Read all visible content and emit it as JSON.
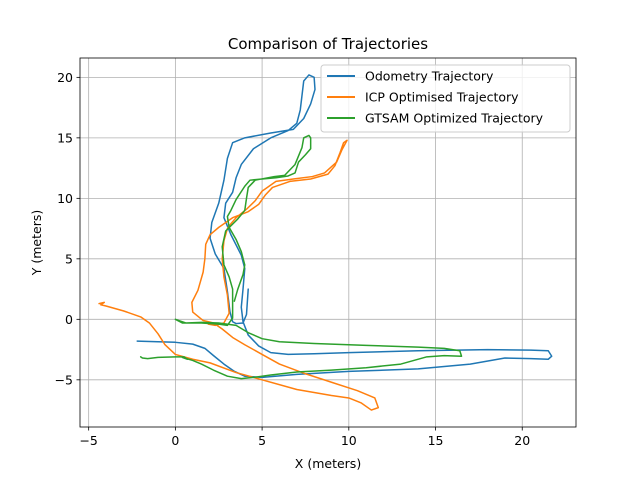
{
  "chart_data": {
    "type": "line",
    "title": "Comparison of Trajectories",
    "xlabel": "X (meters)",
    "ylabel": "Y (meters)",
    "xlim": [
      -5.5,
      23.1
    ],
    "ylim": [
      -8.9,
      21.6
    ],
    "xticks": [
      -5,
      0,
      5,
      10,
      15,
      20
    ],
    "yticks": [
      -5,
      0,
      5,
      10,
      15,
      20
    ],
    "grid": true,
    "legend_position": "top-right",
    "series": [
      {
        "name": "Odometry Trajectory",
        "color": "#1f77b4",
        "points": [
          [
            -2.2,
            -1.8
          ],
          [
            -1.0,
            -1.85
          ],
          [
            0.0,
            -1.9
          ],
          [
            1.0,
            -2.05
          ],
          [
            1.7,
            -2.4
          ],
          [
            2.2,
            -3.0
          ],
          [
            2.8,
            -3.7
          ],
          [
            3.4,
            -4.3
          ],
          [
            4.0,
            -4.7
          ],
          [
            5.0,
            -4.8
          ],
          [
            7.0,
            -4.55
          ],
          [
            10.0,
            -4.3
          ],
          [
            14.0,
            -4.1
          ],
          [
            17.0,
            -3.7
          ],
          [
            19.0,
            -3.2
          ],
          [
            20.5,
            -3.25
          ],
          [
            21.5,
            -3.3
          ],
          [
            21.7,
            -3.05
          ],
          [
            21.5,
            -2.6
          ],
          [
            20.5,
            -2.55
          ],
          [
            18.0,
            -2.5
          ],
          [
            14.0,
            -2.6
          ],
          [
            10.0,
            -2.75
          ],
          [
            8.0,
            -2.85
          ],
          [
            6.5,
            -2.9
          ],
          [
            5.5,
            -2.75
          ],
          [
            4.8,
            -2.2
          ],
          [
            4.2,
            -1.3
          ],
          [
            3.9,
            -0.2
          ],
          [
            3.8,
            1.0
          ],
          [
            3.9,
            2.5
          ],
          [
            4.0,
            4.2
          ],
          [
            3.8,
            5.3
          ],
          [
            3.2,
            7.0
          ],
          [
            2.8,
            8.4
          ],
          [
            2.9,
            9.6
          ],
          [
            3.3,
            10.5
          ],
          [
            3.5,
            11.7
          ],
          [
            3.8,
            12.8
          ],
          [
            4.5,
            14.1
          ],
          [
            5.5,
            15.0
          ],
          [
            6.5,
            15.6
          ],
          [
            7.0,
            16.2
          ],
          [
            7.2,
            17.3
          ],
          [
            7.3,
            18.5
          ],
          [
            7.4,
            19.7
          ],
          [
            7.7,
            20.2
          ],
          [
            8.0,
            20.0
          ],
          [
            8.05,
            19.0
          ],
          [
            7.8,
            17.8
          ],
          [
            7.4,
            16.6
          ],
          [
            6.8,
            15.7
          ],
          [
            5.5,
            15.4
          ],
          [
            4.0,
            15.0
          ],
          [
            3.3,
            14.6
          ],
          [
            3.0,
            13.3
          ],
          [
            2.8,
            11.5
          ],
          [
            2.5,
            9.6
          ],
          [
            2.1,
            8.0
          ],
          [
            2.0,
            6.7
          ],
          [
            2.3,
            5.4
          ],
          [
            2.8,
            4.2
          ],
          [
            3.0,
            2.3
          ],
          [
            3.15,
            0.6
          ],
          [
            3.3,
            -0.2
          ],
          [
            3.5,
            -0.35
          ],
          [
            3.9,
            -0.3
          ],
          [
            4.1,
            0.4
          ],
          [
            4.2,
            2.5
          ]
        ]
      },
      {
        "name": "ICP Optimised Trajectory",
        "color": "#ff7f0e",
        "points": [
          [
            -4.4,
            1.3
          ],
          [
            -4.1,
            1.4
          ],
          [
            -4.3,
            1.2
          ],
          [
            -4.0,
            1.1
          ],
          [
            -3.0,
            0.7
          ],
          [
            -2.0,
            0.2
          ],
          [
            -1.5,
            -0.3
          ],
          [
            -1.0,
            -1.2
          ],
          [
            -0.6,
            -2.1
          ],
          [
            0.0,
            -2.9
          ],
          [
            1.0,
            -3.3
          ],
          [
            2.0,
            -3.6
          ],
          [
            3.5,
            -4.4
          ],
          [
            5.0,
            -5.0
          ],
          [
            7.0,
            -5.8
          ],
          [
            9.0,
            -6.3
          ],
          [
            10.0,
            -6.5
          ],
          [
            10.7,
            -6.9
          ],
          [
            11.3,
            -7.5
          ],
          [
            11.7,
            -7.3
          ],
          [
            11.5,
            -6.5
          ],
          [
            10.5,
            -5.9
          ],
          [
            9.0,
            -5.2
          ],
          [
            7.5,
            -4.5
          ],
          [
            6.0,
            -3.7
          ],
          [
            5.0,
            -2.9
          ],
          [
            4.0,
            -2.1
          ],
          [
            3.3,
            -1.5
          ],
          [
            2.7,
            -0.8
          ],
          [
            2.2,
            -0.3
          ],
          [
            1.6,
            -0.1
          ],
          [
            1.0,
            0.6
          ],
          [
            0.95,
            1.4
          ],
          [
            1.3,
            2.4
          ],
          [
            1.6,
            3.9
          ],
          [
            1.7,
            5.0
          ],
          [
            1.75,
            6.2
          ],
          [
            2.0,
            7.0
          ],
          [
            2.5,
            7.6
          ],
          [
            3.3,
            8.4
          ],
          [
            4.2,
            8.9
          ],
          [
            4.8,
            9.5
          ],
          [
            5.2,
            10.3
          ],
          [
            5.6,
            10.9
          ],
          [
            6.6,
            11.4
          ],
          [
            7.8,
            11.6
          ],
          [
            8.8,
            12.0
          ],
          [
            9.2,
            12.7
          ],
          [
            9.5,
            13.8
          ],
          [
            9.7,
            14.6
          ],
          [
            9.9,
            14.8
          ],
          [
            9.6,
            14.0
          ],
          [
            9.3,
            13.0
          ],
          [
            8.6,
            12.1
          ],
          [
            7.9,
            11.8
          ],
          [
            6.8,
            11.6
          ],
          [
            5.8,
            11.4
          ],
          [
            5.0,
            10.6
          ],
          [
            4.6,
            9.8
          ],
          [
            4.1,
            9.1
          ],
          [
            3.5,
            8.4
          ],
          [
            3.2,
            7.9
          ],
          [
            3.0,
            7.5
          ],
          [
            2.8,
            6.5
          ],
          [
            2.7,
            5.0
          ],
          [
            2.8,
            3.5
          ],
          [
            3.0,
            2.0
          ],
          [
            3.1,
            0.5
          ],
          [
            2.8,
            -0.3
          ],
          [
            2.3,
            -0.5
          ],
          [
            1.9,
            -0.4
          ]
        ]
      },
      {
        "name": "GTSAM Optimized Trajectory",
        "color": "#2ca02c",
        "points": [
          [
            -2.0,
            -3.1
          ],
          [
            -1.9,
            -3.2
          ],
          [
            -1.6,
            -3.25
          ],
          [
            -1.0,
            -3.15
          ],
          [
            0.0,
            -3.1
          ],
          [
            0.5,
            -3.1
          ],
          [
            0.7,
            -3.3
          ],
          [
            0.4,
            -3.15
          ],
          [
            1.0,
            -3.4
          ],
          [
            1.5,
            -3.7
          ],
          [
            2.2,
            -4.2
          ],
          [
            3.0,
            -4.7
          ],
          [
            3.8,
            -4.9
          ],
          [
            4.5,
            -4.8
          ],
          [
            5.5,
            -4.6
          ],
          [
            7.0,
            -4.35
          ],
          [
            9.0,
            -4.2
          ],
          [
            11.0,
            -4.0
          ],
          [
            13.0,
            -3.7
          ],
          [
            14.5,
            -3.1
          ],
          [
            15.5,
            -3.0
          ],
          [
            16.5,
            -3.05
          ],
          [
            16.4,
            -2.6
          ],
          [
            15.5,
            -2.4
          ],
          [
            14.0,
            -2.3
          ],
          [
            11.0,
            -2.15
          ],
          [
            8.0,
            -2.0
          ],
          [
            6.0,
            -1.85
          ],
          [
            5.0,
            -1.6
          ],
          [
            4.2,
            -1.1
          ],
          [
            3.5,
            -0.5
          ],
          [
            2.5,
            -0.3
          ],
          [
            1.5,
            -0.25
          ],
          [
            0.6,
            -0.3
          ],
          [
            0.2,
            -0.1
          ],
          [
            0.0,
            0.0
          ],
          [
            0.4,
            -0.3
          ],
          [
            1.5,
            -0.3
          ],
          [
            2.5,
            -0.4
          ],
          [
            3.0,
            -0.5
          ],
          [
            3.3,
            0.1
          ],
          [
            3.3,
            1.2
          ],
          [
            3.3,
            2.5
          ],
          [
            3.1,
            3.5
          ],
          [
            2.8,
            4.5
          ],
          [
            2.7,
            6.0
          ],
          [
            2.9,
            7.3
          ],
          [
            3.6,
            8.3
          ],
          [
            4.0,
            9.0
          ],
          [
            4.1,
            10.0
          ],
          [
            4.2,
            10.9
          ],
          [
            4.6,
            11.5
          ],
          [
            5.7,
            11.8
          ],
          [
            6.3,
            11.9
          ],
          [
            6.9,
            12.8
          ],
          [
            7.3,
            14.2
          ],
          [
            7.4,
            15.0
          ],
          [
            7.7,
            15.2
          ],
          [
            7.8,
            15.0
          ],
          [
            7.8,
            14.1
          ],
          [
            7.5,
            13.6
          ],
          [
            7.1,
            13.0
          ],
          [
            6.9,
            12.1
          ],
          [
            6.5,
            11.85
          ],
          [
            5.8,
            11.7
          ],
          [
            5.0,
            11.6
          ],
          [
            4.3,
            11.5
          ],
          [
            4.0,
            11.0
          ],
          [
            3.5,
            9.9
          ],
          [
            3.2,
            9.0
          ],
          [
            3.0,
            8.5
          ],
          [
            3.1,
            7.6
          ],
          [
            3.5,
            6.6
          ],
          [
            3.8,
            5.6
          ],
          [
            4.0,
            4.5
          ],
          [
            3.9,
            3.7
          ],
          [
            3.6,
            2.5
          ],
          [
            3.4,
            1.5
          ]
        ]
      }
    ]
  }
}
